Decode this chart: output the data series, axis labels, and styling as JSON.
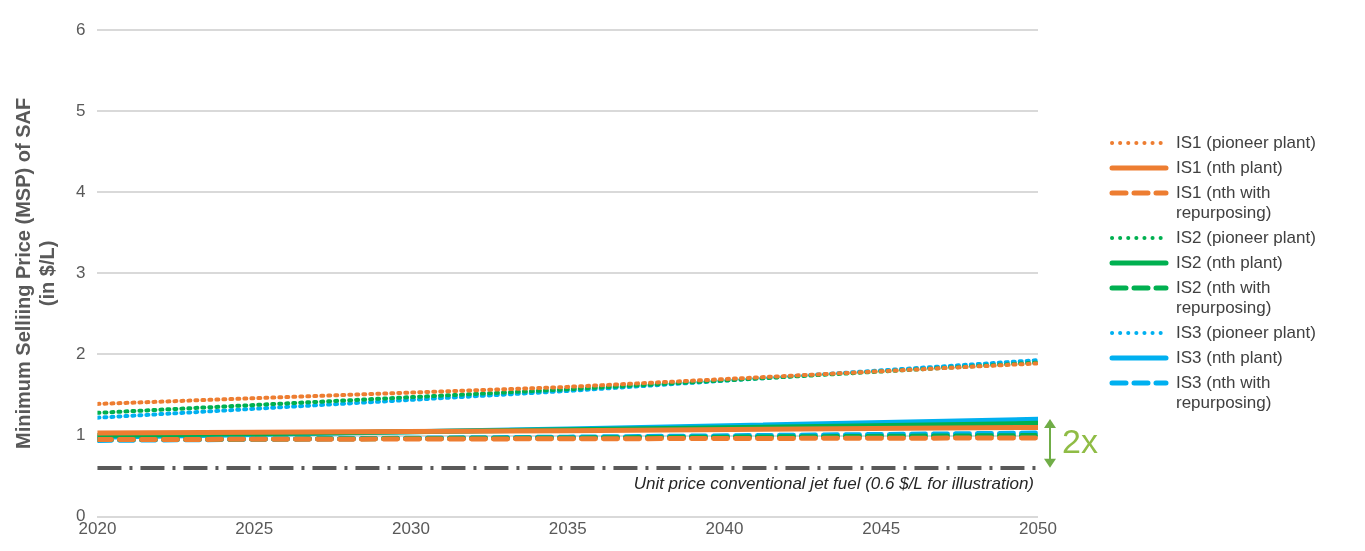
{
  "chart_data": {
    "type": "line",
    "ylabel": "Minimum Selliing Price (MSP) of SAF\n(in $/L)",
    "x": [
      2020,
      2035,
      2050
    ],
    "xlim": [
      2020,
      2050
    ],
    "xticks": [
      2020,
      2025,
      2030,
      2035,
      2040,
      2045,
      2050
    ],
    "ylim": [
      0,
      6
    ],
    "yticks": [
      0,
      1,
      2,
      3,
      4,
      5,
      6
    ],
    "grid": "y",
    "legend": "right",
    "marker": "none",
    "series": [
      {
        "name": "IS1 (pioneer plant)",
        "color": "#ed7d31",
        "line_style": "dotted",
        "values": [
          1.39,
          1.6,
          1.89
        ]
      },
      {
        "name": "IS1 (nth plant)",
        "color": "#ed7d31",
        "line_style": "solid",
        "values": [
          1.03,
          1.06,
          1.1
        ]
      },
      {
        "name": "IS1 (nth with repurposing)",
        "color": "#ed7d31",
        "line_style": "dashed",
        "values": [
          0.95,
          0.96,
          0.97
        ]
      },
      {
        "name": "IS2 (pioneer plant)",
        "color": "#00b050",
        "line_style": "dotted",
        "values": [
          1.28,
          1.57,
          1.9
        ]
      },
      {
        "name": "IS2 (nth plant)",
        "color": "#00b050",
        "line_style": "solid",
        "values": [
          1.0,
          1.07,
          1.15
        ]
      },
      {
        "name": "IS2 (nth with repurposing)",
        "color": "#00b050",
        "line_style": "dashed",
        "values": [
          0.95,
          0.97,
          1.0
        ]
      },
      {
        "name": "IS3 (pioneer plant)",
        "color": "#00b0f0",
        "line_style": "dotted",
        "values": [
          1.22,
          1.55,
          1.93
        ]
      },
      {
        "name": "IS3 (nth plant)",
        "color": "#00b0f0",
        "line_style": "solid",
        "values": [
          0.98,
          1.08,
          1.2
        ]
      },
      {
        "name": "IS3 (nth with repurposing)",
        "color": "#00b0f0",
        "line_style": "dashed",
        "values": [
          0.94,
          0.98,
          1.03
        ]
      }
    ],
    "ref_lines": [
      {
        "axis": "y",
        "value": 0.6,
        "label": "Unit price conventional jet fuel (0.6 $/L for illustration)",
        "color": "#595959",
        "line_style": "dashdot"
      }
    ],
    "annotations": [
      {
        "text": "2x",
        "x": 2050,
        "y": 0.9
      }
    ]
  }
}
